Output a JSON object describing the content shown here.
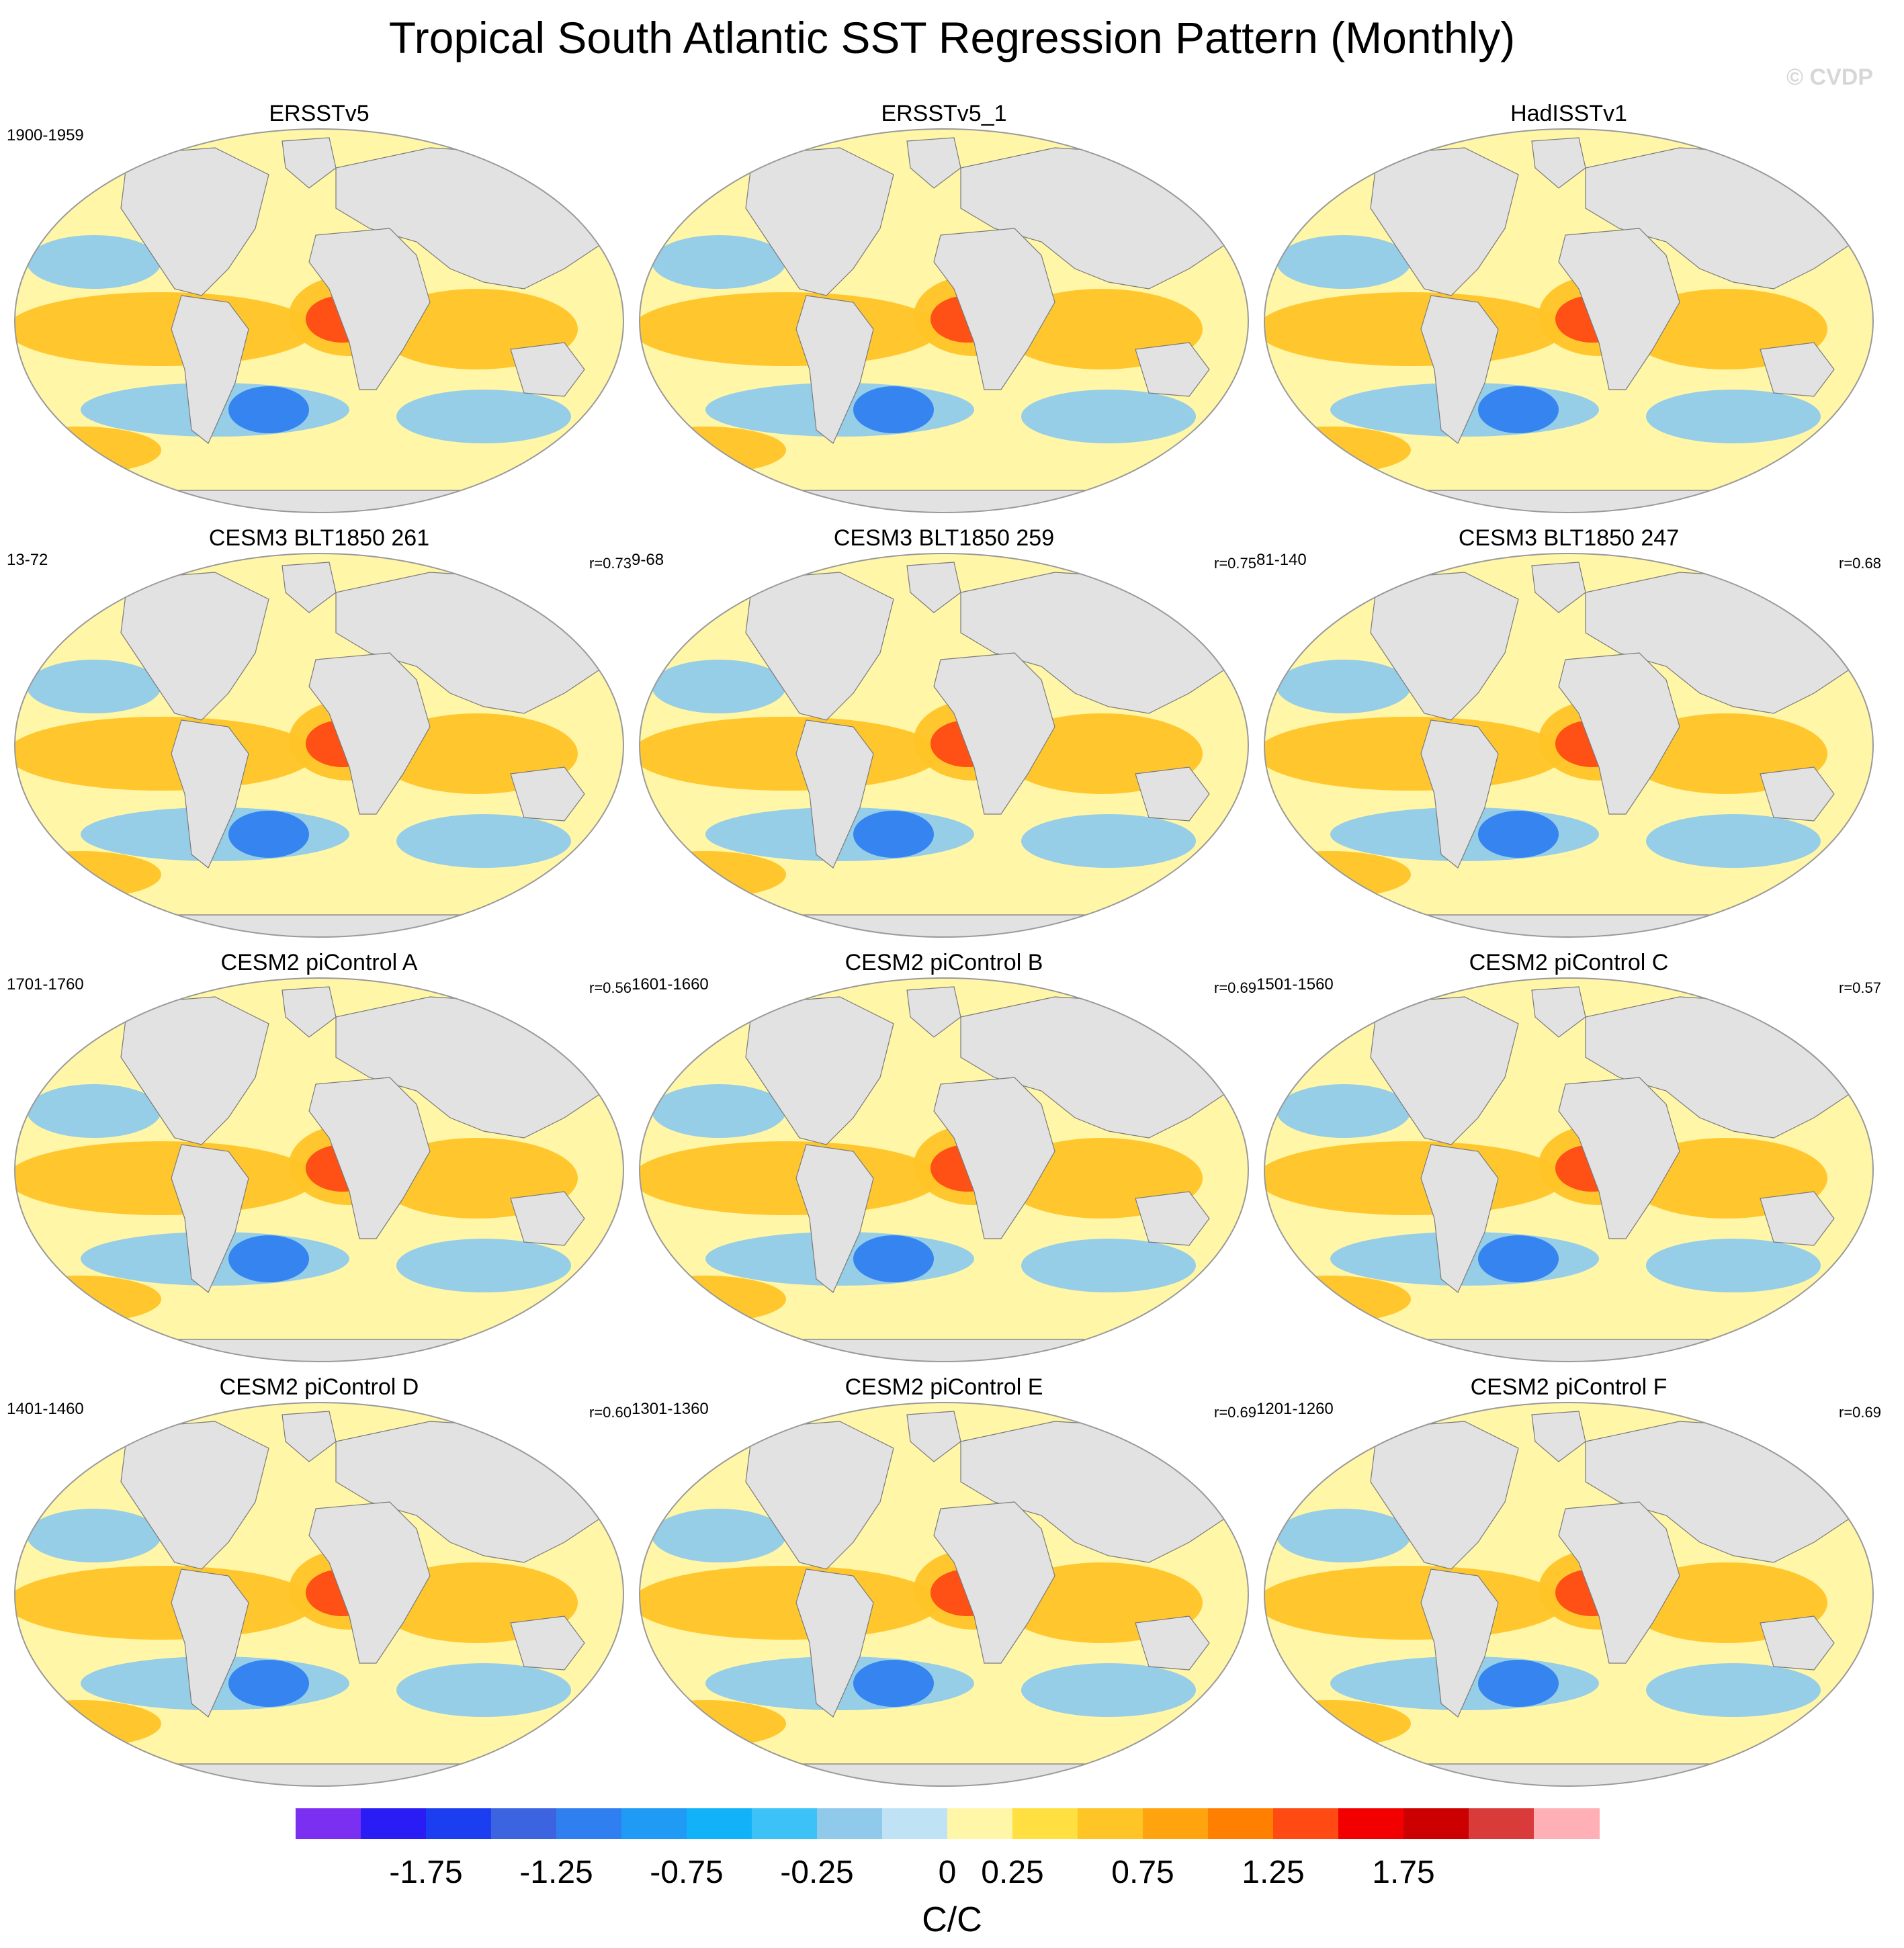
{
  "figure": {
    "title": "Tropical South Atlantic SST Regression Pattern (Monthly)",
    "credit": "© CVDP"
  },
  "panels": [
    {
      "title": "ERSSTv5",
      "years": "1900-1959",
      "r": ""
    },
    {
      "title": "ERSSTv5_1",
      "years": "",
      "r": ""
    },
    {
      "title": "HadISSTv1",
      "years": "",
      "r": ""
    },
    {
      "title": "CESM3 BLT1850 261",
      "years": "13-72",
      "r": "r=0.73"
    },
    {
      "title": "CESM3 BLT1850 259",
      "years": "9-68",
      "r": "r=0.75"
    },
    {
      "title": "CESM3 BLT1850 247",
      "years": "81-140",
      "r": "r=0.68"
    },
    {
      "title": "CESM2 piControl A",
      "years": "1701-1760",
      "r": "r=0.56"
    },
    {
      "title": "CESM2 piControl B",
      "years": "1601-1660",
      "r": "r=0.69"
    },
    {
      "title": "CESM2 piControl C",
      "years": "1501-1560",
      "r": "r=0.57"
    },
    {
      "title": "CESM2 piControl D",
      "years": "1401-1460",
      "r": "r=0.60"
    },
    {
      "title": "CESM2 piControl E",
      "years": "1301-1360",
      "r": "r=0.69"
    },
    {
      "title": "CESM2 piControl F",
      "years": "1201-1260",
      "r": "r=0.69"
    }
  ],
  "colorbar": {
    "units": "C/C",
    "tick_labels": [
      "-1.75",
      "-1.25",
      "-0.75",
      "-0.25",
      "0",
      "0.25",
      "0.75",
      "1.25",
      "1.75"
    ],
    "colors": [
      "#7b2ff0",
      "#2a1cf5",
      "#1a3ef0",
      "#3d64e0",
      "#2f7ff0",
      "#1f9af5",
      "#12b2f8",
      "#3dc2f7",
      "#90caea",
      "#bfe3f5",
      "#fff6a8",
      "#ffe040",
      "#ffc426",
      "#ffa30e",
      "#ff7f00",
      "#ff4a14",
      "#f20000",
      "#cc0000",
      "#d93a3a",
      "#ffb0b6"
    ]
  },
  "colors": {
    "ocean_neutral": "#fff6a8",
    "warm": "#ffc426",
    "hot": "#ff4a14",
    "cool": "#90caea",
    "cold": "#2f7ff0",
    "land": "#e2e2e2",
    "coast": "#7a7a7a"
  }
}
